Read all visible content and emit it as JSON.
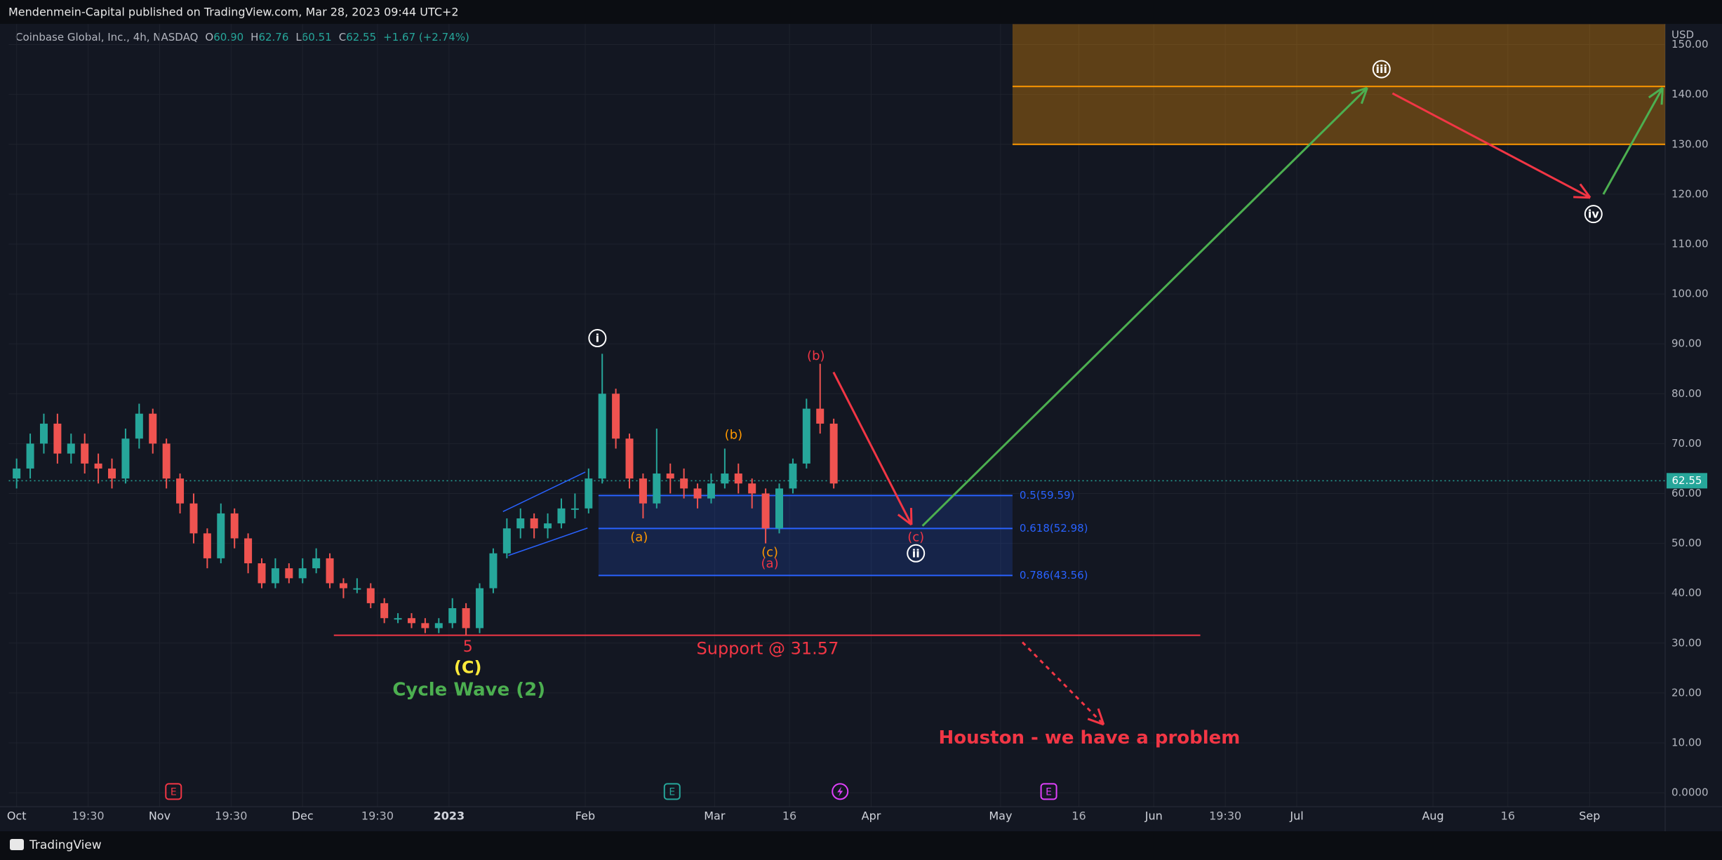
{
  "header": {
    "publisher": "Mendenmein-Capital published on TradingView.com, Mar 28, 2023 09:44 UTC+2",
    "footer": "TradingView"
  },
  "chart_data": {
    "type": "candlestick",
    "title": "Coinbase Global, Inc., 4h, NASDAQ",
    "ohlc_legend": [
      "O",
      "60.90",
      "H",
      "62.76",
      "L",
      "60.51",
      "C",
      "62.55",
      "+1.67 (+2.74%)"
    ],
    "currency": "USD",
    "x": [
      0,
      4,
      8,
      12,
      16,
      20,
      24,
      28,
      32,
      36,
      40,
      44,
      48,
      52,
      56,
      60,
      64,
      68,
      72,
      76,
      80,
      84,
      88,
      92,
      96,
      100,
      104,
      108,
      112,
      116,
      120,
      124,
      128,
      132,
      136,
      140,
      144,
      148,
      152,
      156,
      160,
      164,
      168,
      172,
      176,
      180,
      184,
      188,
      192,
      196,
      200,
      204,
      208,
      212,
      216,
      220,
      224,
      228,
      232,
      236,
      240
    ],
    "open": [
      63,
      65,
      70,
      74,
      68,
      70,
      66,
      65,
      63,
      71,
      76,
      70,
      63,
      58,
      52,
      47,
      56,
      51,
      46,
      42,
      45,
      43,
      45,
      47,
      42,
      41,
      41,
      38,
      35,
      35,
      34,
      33,
      34,
      37,
      33,
      41,
      48,
      53,
      55,
      53,
      54,
      57,
      57,
      63,
      80,
      71,
      63,
      58,
      64,
      63,
      61,
      59,
      62,
      64,
      62,
      60,
      53,
      61,
      66,
      77,
      74
    ],
    "high": [
      67,
      72,
      76,
      76,
      72,
      72,
      68,
      67,
      73,
      78,
      77,
      71,
      64,
      60,
      53,
      58,
      57,
      52,
      47,
      47,
      46,
      47,
      49,
      48,
      43,
      43,
      42,
      39,
      36,
      36,
      35,
      35,
      39,
      38,
      42,
      49,
      55,
      57,
      56,
      56,
      59,
      60,
      65,
      88,
      81,
      72,
      64,
      73,
      66,
      65,
      62,
      64,
      69,
      66,
      63,
      61,
      62,
      67,
      79,
      86,
      75
    ],
    "low": [
      61,
      63,
      68,
      66,
      66,
      64,
      62,
      61,
      62,
      69,
      68,
      61,
      56,
      50,
      45,
      46,
      49,
      44,
      41,
      41,
      42,
      42,
      44,
      41,
      39,
      40,
      37,
      34,
      34,
      33,
      32,
      32,
      33,
      31.6,
      32,
      40,
      47,
      51,
      51,
      51,
      53,
      55,
      56,
      62,
      69,
      61,
      55,
      57,
      60,
      59,
      57,
      58,
      61,
      60,
      57,
      50,
      52,
      60,
      65,
      72,
      61
    ],
    "close": [
      65,
      70,
      74,
      68,
      70,
      66,
      65,
      63,
      71,
      76,
      70,
      63,
      58,
      52,
      47,
      56,
      51,
      46,
      42,
      45,
      43,
      45,
      47,
      42,
      41,
      41,
      38,
      35,
      35,
      34,
      33,
      34,
      37,
      33,
      41,
      48,
      53,
      55,
      53,
      54,
      57,
      57,
      63,
      80,
      71,
      63,
      58,
      64,
      63,
      61,
      59,
      62,
      64,
      62,
      60,
      53,
      61,
      66,
      77,
      74,
      62
    ],
    "up_color": "#26a69a",
    "down_color": "#ef5350",
    "xlim": [
      -2.3,
      484.2
    ],
    "xticks": [
      {
        "value": 0,
        "label": "Oct"
      },
      {
        "value": 21,
        "label": "19:30"
      },
      {
        "value": 42,
        "label": "Nov"
      },
      {
        "value": 63,
        "label": "19:30"
      },
      {
        "value": 84,
        "label": "Dec"
      },
      {
        "value": 106,
        "label": "19:30"
      },
      {
        "value": 127,
        "label": "2023"
      },
      {
        "value": 167,
        "label": "Feb"
      },
      {
        "value": 205,
        "label": "Mar"
      },
      {
        "value": 227,
        "label": "16"
      },
      {
        "value": 251,
        "label": "Apr"
      },
      {
        "value": 289,
        "label": "May"
      },
      {
        "value": 312,
        "label": "16"
      },
      {
        "value": 334,
        "label": "Jun"
      },
      {
        "value": 355,
        "label": "19:30"
      },
      {
        "value": 376,
        "label": "Jul"
      },
      {
        "value": 416,
        "label": "Aug"
      },
      {
        "value": 438,
        "label": "16"
      },
      {
        "value": 462,
        "label": "Sep"
      }
    ],
    "ylim": [
      -2.8,
      154.1
    ],
    "yticks": [
      {
        "value": 0,
        "label": "0.0000"
      },
      {
        "value": 10,
        "label": "10.00"
      },
      {
        "value": 20,
        "label": "20.00"
      },
      {
        "value": 30,
        "label": "30.00"
      },
      {
        "value": 40,
        "label": "40.00"
      },
      {
        "value": 50,
        "label": "50.00"
      },
      {
        "value": 60,
        "label": "60.00"
      },
      {
        "value": 70,
        "label": "70.00"
      },
      {
        "value": 80,
        "label": "80.00"
      },
      {
        "value": 90,
        "label": "90.00"
      },
      {
        "value": 100,
        "label": "100.00"
      },
      {
        "value": 110,
        "label": "110.00"
      },
      {
        "value": 120,
        "label": "120.00"
      },
      {
        "value": 130,
        "label": "130.00"
      },
      {
        "value": 140,
        "label": "140.00"
      },
      {
        "value": 150,
        "label": "150.00"
      }
    ],
    "last_price": {
      "value": 62.55,
      "label": "62.55"
    },
    "fib_levels": [
      {
        "value": 59.59,
        "label": "0.5(59.59)"
      },
      {
        "value": 52.98,
        "label": "0.618(52.98)"
      },
      {
        "value": 43.56,
        "label": "0.786(43.56)"
      }
    ],
    "support": {
      "value": 31.57,
      "label": "Support @ 31.57"
    },
    "target_zone": [
      130,
      141.6
    ],
    "annotations": [
      "i",
      "(b)",
      "(a)",
      "(c)",
      "(a)",
      "(b)",
      "(c)",
      "ii",
      "iii",
      "iv",
      "5",
      "(C)",
      "Cycle Wave (2)",
      "Houston - we have a problem"
    ],
    "events": [
      "E",
      "E",
      "E"
    ]
  }
}
